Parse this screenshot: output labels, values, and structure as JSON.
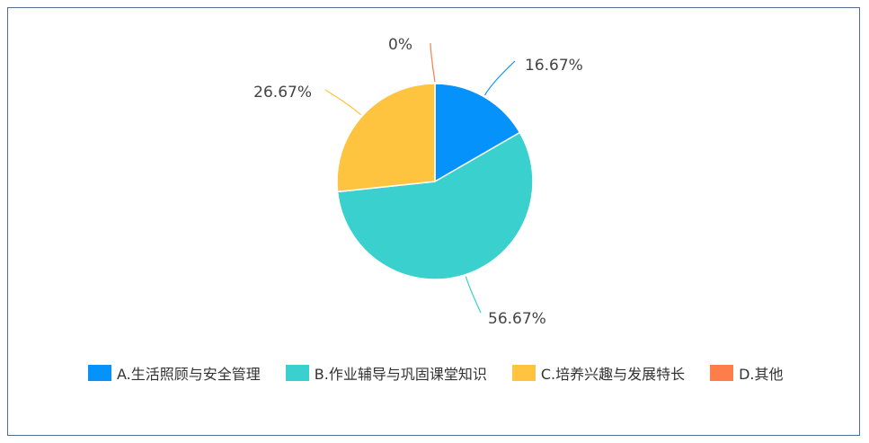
{
  "chart_data": {
    "type": "pie",
    "title": "",
    "categories": [
      "A.生活照顾与安全管理",
      "B.作业辅导与巩固课堂知识",
      "C.培养兴趣与发展特长",
      "D.其他"
    ],
    "values": [
      16.67,
      56.67,
      26.67,
      0
    ],
    "value_labels": [
      "16.67%",
      "56.67%",
      "26.67%",
      "0%"
    ],
    "colors": [
      "#0593fb",
      "#3ad0cd",
      "#fec440",
      "#fd7e4b"
    ],
    "legend_position": "bottom-left"
  }
}
